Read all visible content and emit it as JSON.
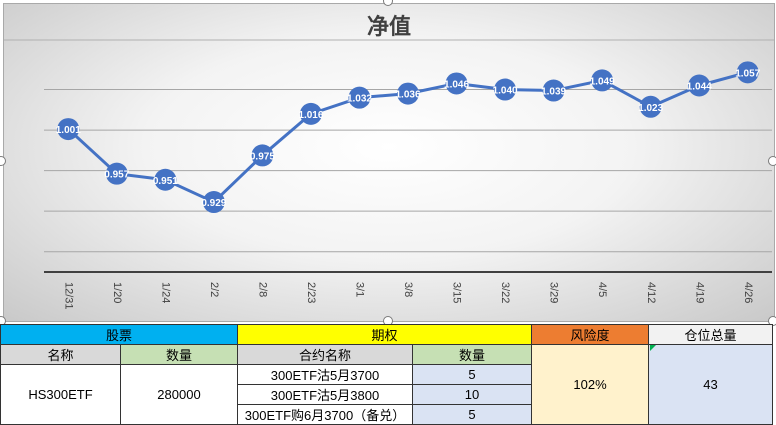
{
  "chart_data": {
    "type": "line",
    "title": "净值",
    "categories": [
      "12/31",
      "1/20",
      "1/24",
      "2/2",
      "2/8",
      "2/23",
      "3/1",
      "3/8",
      "3/15",
      "3/22",
      "3/29",
      "4/5",
      "4/12",
      "4/19",
      "4/26"
    ],
    "series": [
      {
        "values": [
          1.001,
          0.957,
          0.951,
          0.929,
          0.975,
          1.016,
          1.032,
          1.036,
          1.046,
          1.04,
          1.039,
          1.049,
          1.023,
          1.044,
          1.057
        ]
      }
    ],
    "data_labels": [
      "1.001",
      "0.957",
      "0.951",
      "0.929",
      "0.975",
      "1.016",
      "1.032",
      "1.036",
      "1.046",
      "1.040",
      "1.039",
      "1.049",
      "1.023",
      "1.044",
      "1.057"
    ],
    "ylim": [
      0.86,
      1.08
    ],
    "grid": true,
    "colors": {
      "line": "#4472c4",
      "marker": "#4472c4",
      "label": "#ffffff"
    }
  },
  "table": {
    "headers": {
      "stock": "股票",
      "option": "期权",
      "risk": "风险度",
      "position": "仓位总量"
    },
    "subheaders": {
      "stock_name": "名称",
      "stock_qty": "数量",
      "contract_name": "合约名称",
      "option_qty": "数量"
    },
    "stock": {
      "name": "HS300ETF",
      "qty": "280000"
    },
    "options": [
      {
        "name": "300ETF沽5月3700",
        "qty": "5"
      },
      {
        "name": "300ETF沽5月3800",
        "qty": "10"
      },
      {
        "name": "300ETF购6月3700（备兑）",
        "qty": "5"
      }
    ],
    "risk": "102%",
    "position": "43"
  }
}
